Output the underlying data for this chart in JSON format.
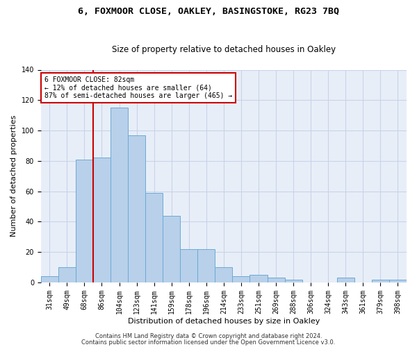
{
  "title1": "6, FOXMOOR CLOSE, OAKLEY, BASINGSTOKE, RG23 7BQ",
  "title2": "Size of property relative to detached houses in Oakley",
  "xlabel": "Distribution of detached houses by size in Oakley",
  "ylabel": "Number of detached properties",
  "categories": [
    "31sqm",
    "49sqm",
    "68sqm",
    "86sqm",
    "104sqm",
    "123sqm",
    "141sqm",
    "159sqm",
    "178sqm",
    "196sqm",
    "214sqm",
    "233sqm",
    "251sqm",
    "269sqm",
    "288sqm",
    "306sqm",
    "324sqm",
    "343sqm",
    "361sqm",
    "379sqm",
    "398sqm"
  ],
  "values": [
    4,
    10,
    81,
    82,
    115,
    97,
    59,
    44,
    22,
    22,
    10,
    4,
    5,
    3,
    2,
    0,
    0,
    3,
    0,
    2,
    2
  ],
  "bar_color": "#b8d0ea",
  "bar_edge_color": "#6aaad4",
  "vline_x": 2.5,
  "vline_color": "#cc0000",
  "annotation_text": "6 FOXMOOR CLOSE: 82sqm\n← 12% of detached houses are smaller (64)\n87% of semi-detached houses are larger (465) →",
  "annotation_box_color": "#ffffff",
  "annotation_box_edge": "#cc0000",
  "ylim": [
    0,
    140
  ],
  "yticks": [
    0,
    20,
    40,
    60,
    80,
    100,
    120,
    140
  ],
  "grid_color": "#c8d4e8",
  "background_color": "#e8eef8",
  "footer1": "Contains HM Land Registry data © Crown copyright and database right 2024.",
  "footer2": "Contains public sector information licensed under the Open Government Licence v3.0.",
  "title1_fontsize": 9.5,
  "title2_fontsize": 8.5,
  "xlabel_fontsize": 8,
  "ylabel_fontsize": 8,
  "tick_fontsize": 7,
  "ann_fontsize": 7,
  "footer_fontsize": 6
}
